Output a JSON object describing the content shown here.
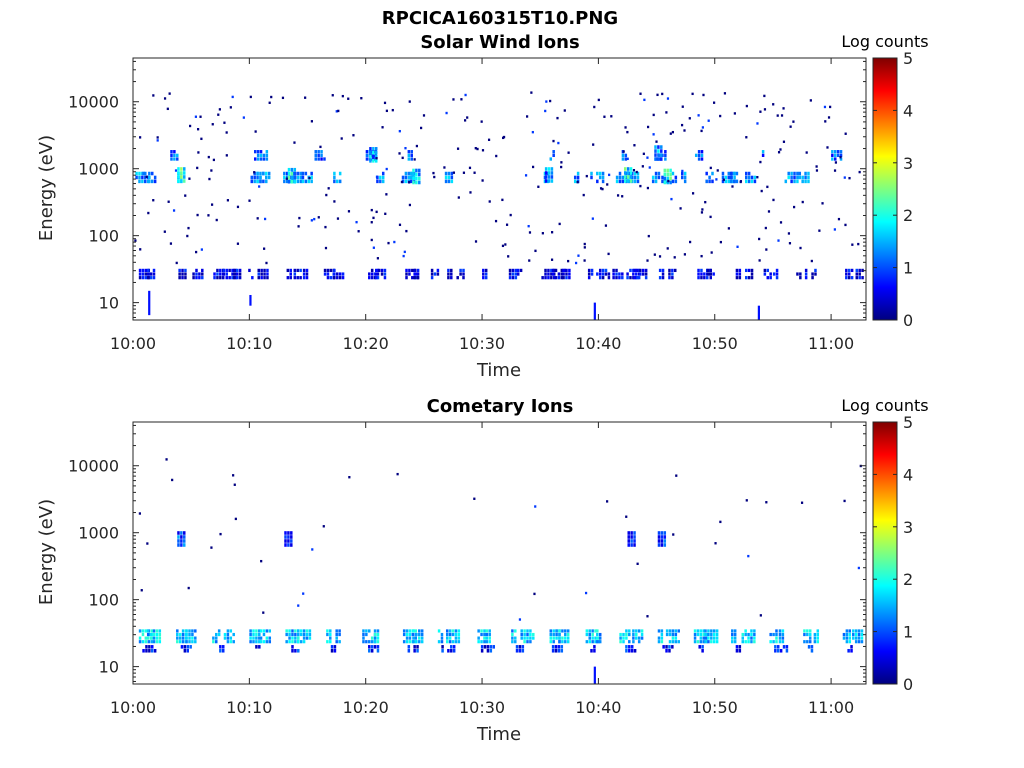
{
  "figure_title": "RPCICA160315T10.PNG",
  "chart_data": [
    {
      "type": "heatmap",
      "title": "Solar Wind Ions",
      "xlabel": "Time",
      "ylabel": "Energy (eV)",
      "x_ticks": [
        "10:00",
        "10:10",
        "10:20",
        "10:30",
        "10:40",
        "10:50",
        "11:00"
      ],
      "xlim_minutes": [
        0,
        63
      ],
      "y_scale": "log",
      "y_ticks": [
        10,
        100,
        1000,
        10000
      ],
      "ylim": [
        5.5,
        45000
      ],
      "colorbar": {
        "label": "Log counts",
        "range": [
          0,
          5
        ],
        "ticks": [
          0,
          1,
          2,
          3,
          4,
          5
        ],
        "colormap": "jet"
      },
      "bands": [
        {
          "energy_lo": 22,
          "energy_hi": 32,
          "value": 0.5,
          "times": [
            0.5,
            1.2,
            3.9,
            5.1,
            6.9,
            7.7,
            8.6,
            9.9,
            10.7,
            13.2,
            13.8,
            14.6,
            16.4,
            17.2,
            20.2,
            20.8,
            23.4,
            24.1,
            25.6,
            27.0,
            27.8,
            30.0,
            32.3,
            33.0,
            35.1,
            36.0,
            36.9,
            39.1,
            39.8,
            41.2,
            42.4,
            43.0,
            45.2,
            46.0,
            48.5,
            49.3,
            51.8,
            52.6,
            54.2,
            55.0,
            57.0,
            58.3,
            61.2,
            62.1
          ]
        },
        {
          "energy_lo": 600,
          "energy_hi": 900,
          "value": 1.3,
          "times": [
            0.2,
            0.8,
            3.8,
            10.1,
            10.6,
            12.9,
            13.6,
            14.5,
            17.2,
            20.9,
            23.1,
            23.8,
            26.8,
            35.3,
            37.9,
            39.3,
            41.5,
            42.3,
            44.6,
            45.4,
            46.3,
            47.1,
            49.2,
            50.6,
            51.3,
            52.6,
            56.0,
            57.2
          ]
        },
        {
          "energy_lo": 1300,
          "energy_hi": 1900,
          "value": 1.1,
          "times": [
            3.2,
            10.4,
            15.6,
            20.0,
            23.6,
            35.8,
            42.0,
            44.9,
            48.3,
            53.8,
            60.0
          ]
        }
      ],
      "peaks": [
        {
          "time": 3.8,
          "energy": 800,
          "value": 2.8
        },
        {
          "time": 13.3,
          "energy": 780,
          "value": 2.4
        },
        {
          "time": 24.0,
          "energy": 760,
          "value": 2.2
        },
        {
          "time": 42.2,
          "energy": 800,
          "value": 2.6
        },
        {
          "time": 45.6,
          "energy": 760,
          "value": 2.5
        },
        {
          "time": 20.3,
          "energy": 1600,
          "value": 2.0
        },
        {
          "time": 44.8,
          "energy": 1700,
          "value": 2.1
        },
        {
          "time": 35.4,
          "energy": 800,
          "value": 2.0
        }
      ],
      "spikes": [
        {
          "time": 1.3,
          "energy_lo": 6.5,
          "energy_hi": 15
        },
        {
          "time": 10.0,
          "energy_lo": 9,
          "energy_hi": 13
        },
        {
          "time": 39.6,
          "energy_lo": 5.6,
          "energy_hi": 10
        },
        {
          "time": 53.7,
          "energy_lo": 5.6,
          "energy_hi": 9
        }
      ]
    },
    {
      "type": "heatmap",
      "title": "Cometary Ions",
      "xlabel": "Time",
      "ylabel": "Energy (eV)",
      "x_ticks": [
        "10:00",
        "10:10",
        "10:20",
        "10:30",
        "10:40",
        "10:50",
        "11:00"
      ],
      "xlim_minutes": [
        0,
        63
      ],
      "y_scale": "log",
      "y_ticks": [
        10,
        100,
        1000,
        10000
      ],
      "ylim": [
        5.5,
        45000
      ],
      "colorbar": {
        "label": "Log counts",
        "range": [
          0,
          5
        ],
        "ticks": [
          0,
          1,
          2,
          3,
          4,
          5
        ],
        "colormap": "jet"
      },
      "bands": [
        {
          "energy_lo": 22,
          "energy_hi": 36,
          "value": 1.6,
          "times": [
            0.5,
            1.2,
            3.7,
            4.5,
            6.8,
            7.8,
            10.0,
            10.9,
            13.1,
            14.1,
            16.6,
            17.4,
            19.7,
            20.7,
            23.2,
            24.0,
            26.2,
            26.9,
            29.6,
            30.3,
            32.5,
            33.3,
            35.8,
            36.3,
            38.9,
            39.8,
            41.8,
            42.9,
            45.1,
            45.8,
            48.2,
            49.1,
            51.4,
            52.3,
            54.7,
            55.5,
            57.6,
            58.5,
            61.0,
            61.8
          ]
        },
        {
          "energy_lo": 16,
          "energy_hi": 21,
          "value": 0.7,
          "times": [
            0.8,
            4.1,
            7.4,
            10.5,
            13.6,
            17.0,
            20.2,
            23.6,
            26.5,
            29.9,
            32.9,
            36.0,
            39.3,
            42.3,
            45.5,
            48.6,
            51.8,
            55.1,
            58.0,
            61.4
          ]
        }
      ],
      "peaks": [
        {
          "time": 3.8,
          "energy": 800,
          "value": 1.5
        },
        {
          "time": 13.0,
          "energy": 800,
          "value": 1.0
        },
        {
          "time": 42.5,
          "energy": 800,
          "value": 1.2
        },
        {
          "time": 45.1,
          "energy": 800,
          "value": 1.4
        }
      ],
      "spikes": [
        {
          "time": 39.6,
          "energy_lo": 5.6,
          "energy_hi": 10
        }
      ]
    }
  ]
}
